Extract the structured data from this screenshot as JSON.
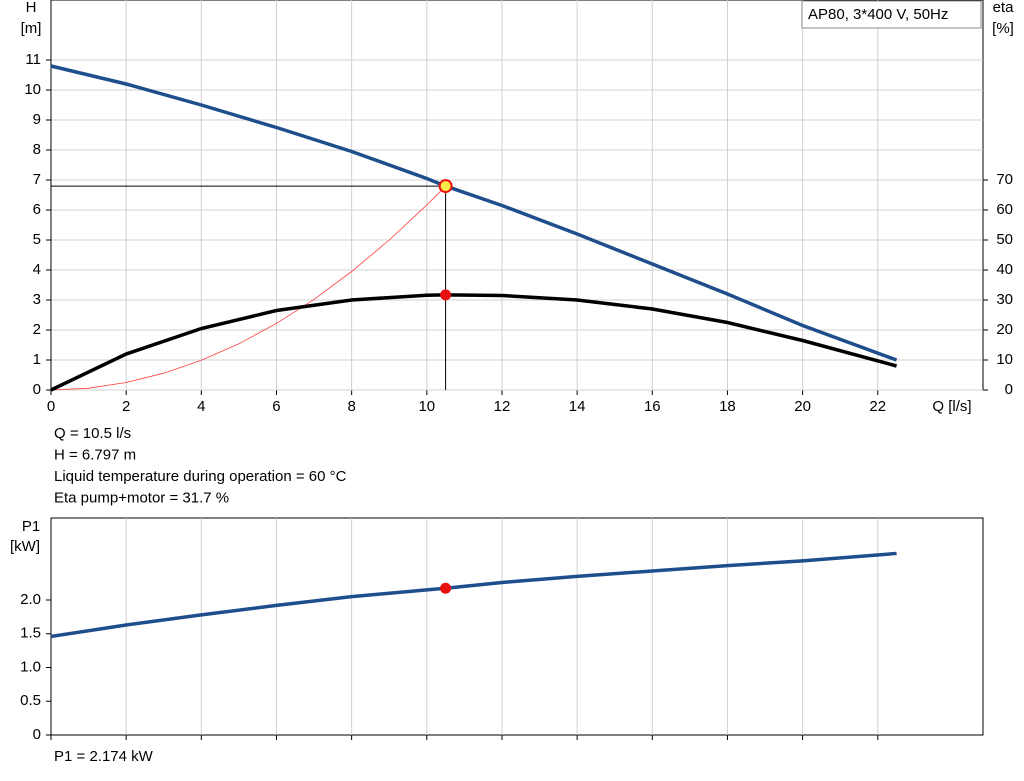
{
  "chart_data": [
    {
      "type": "line",
      "y_label": [
        "H",
        "[m]"
      ],
      "y2_label": [
        "eta",
        "[%]"
      ],
      "x_label": "Q [l/s]",
      "legend_box": "AP80, 3*400 V, 50Hz",
      "xlim": [
        0,
        24.8
      ],
      "xticks": [
        0,
        2,
        4,
        6,
        8,
        10,
        12,
        14,
        16,
        18,
        20,
        22
      ],
      "ylim": [
        0,
        13
      ],
      "yticks": [
        0,
        1,
        2,
        3,
        4,
        5,
        6,
        7,
        8,
        9,
        10,
        11
      ],
      "y2lim": [
        0,
        130
      ],
      "y2ticks": [
        0,
        10,
        20,
        30,
        40,
        50,
        60,
        70
      ],
      "grid": true,
      "series": [
        {
          "color": "#1f4e8c",
          "width": 3.5,
          "x": [
            0,
            2,
            4,
            6,
            8,
            10,
            10.5,
            12,
            14,
            16,
            18,
            20,
            22.5
          ],
          "values": [
            10.8,
            10.2,
            9.5,
            8.75,
            7.95,
            7.05,
            6.797,
            6.15,
            5.2,
            4.2,
            3.2,
            2.15,
            1.0
          ]
        },
        {
          "color": "#000000",
          "width": 3.5,
          "axis": "y2",
          "x": [
            0,
            2,
            4,
            6,
            8,
            10,
            10.5,
            12,
            14,
            16,
            18,
            20,
            22.5
          ],
          "values": [
            0,
            12,
            20.5,
            26.5,
            30,
            31.6,
            31.7,
            31.5,
            30,
            27,
            22.5,
            16.5,
            8
          ]
        },
        {
          "color": "#ff4040",
          "width": 0.8,
          "x": [
            0,
            1,
            2,
            3,
            4,
            5,
            6,
            7,
            8,
            9,
            10,
            10.5
          ],
          "values": [
            0,
            0.06,
            0.25,
            0.56,
            0.99,
            1.54,
            2.22,
            3.02,
            3.95,
            5.0,
            6.17,
            6.797
          ]
        }
      ],
      "operating_point": {
        "x": 10.5,
        "y": 6.797,
        "eta": 31.7
      },
      "annotations": [
        "Q = 10.5 l/s",
        "H = 6.797 m",
        "Liquid temperature during operation = 60 °C",
        "Eta pump+motor = 31.7 %"
      ]
    },
    {
      "type": "line",
      "y_label": [
        "P1",
        "[kW]"
      ],
      "xlim": [
        0,
        24.8
      ],
      "xticks": [
        0,
        2,
        4,
        6,
        8,
        10,
        12,
        14,
        16,
        18,
        20,
        22
      ],
      "ylim": [
        0,
        3.215
      ],
      "yticks": [
        0,
        0.5,
        {
          "value": 1,
          "label": "1.0"
        },
        1.5,
        {
          "value": 2,
          "label": "2.0"
        }
      ],
      "grid": true,
      "series": [
        {
          "color": "#1f4e8c",
          "width": 3.5,
          "x": [
            0,
            2,
            4,
            6,
            8,
            10,
            10.5,
            12,
            14,
            16,
            18,
            20,
            22.5
          ],
          "values": [
            1.46,
            1.63,
            1.78,
            1.92,
            2.05,
            2.15,
            2.174,
            2.26,
            2.35,
            2.43,
            2.51,
            2.58,
            2.69
          ]
        }
      ],
      "operating_point": {
        "x": 10.5,
        "y": 2.174
      },
      "annotations": [
        "P1 = 2.174 kW"
      ]
    }
  ]
}
